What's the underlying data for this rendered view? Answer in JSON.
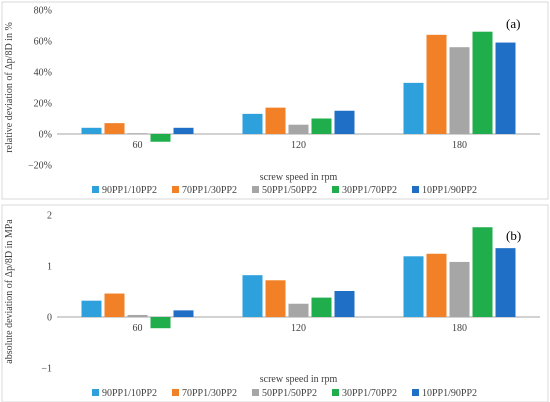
{
  "chart_data": [
    {
      "type": "bar",
      "panel_label": "(a)",
      "categories": [
        "60",
        "120",
        "180"
      ],
      "xlabel": "screw speed in rpm",
      "ylabel": "relative deviation of Δp/8D in %",
      "ylim": [
        -20,
        80
      ],
      "yticks": [
        -20,
        0,
        20,
        40,
        60,
        80
      ],
      "ytick_labels": [
        "−20%",
        "0%",
        "20%",
        "40%",
        "60%",
        "80%"
      ],
      "grid": false,
      "legend_position": "bottom",
      "series": [
        {
          "name": "90PP1/10PP2",
          "color": "#2ea1dd",
          "values": [
            4,
            13,
            33
          ]
        },
        {
          "name": "70PP1/30PP2",
          "color": "#f28026",
          "values": [
            7,
            17,
            64
          ]
        },
        {
          "name": "50PP1/50PP2",
          "color": "#a6a6a6",
          "values": [
            0.5,
            6,
            56
          ]
        },
        {
          "name": "30PP1/70PP2",
          "color": "#1fae4b",
          "values": [
            -5,
            10,
            66
          ]
        },
        {
          "name": "10PP1/90PP2",
          "color": "#1f6fc6",
          "values": [
            4,
            15,
            59
          ]
        }
      ]
    },
    {
      "type": "bar",
      "panel_label": "(b)",
      "categories": [
        "60",
        "120",
        "180"
      ],
      "xlabel": "screw speed in rpm",
      "ylabel": "absolute deviation of Δp/8D in MPa",
      "ylim": [
        -1,
        2
      ],
      "yticks": [
        -1,
        0,
        1,
        2
      ],
      "ytick_labels": [
        "−1",
        "0",
        "1",
        "2"
      ],
      "grid": false,
      "legend_position": "bottom",
      "series": [
        {
          "name": "90PP1/10PP2",
          "color": "#2ea1dd",
          "values": [
            0.32,
            0.82,
            1.19
          ]
        },
        {
          "name": "70PP1/30PP2",
          "color": "#f28026",
          "values": [
            0.46,
            0.72,
            1.24
          ]
        },
        {
          "name": "50PP1/50PP2",
          "color": "#a6a6a6",
          "values": [
            0.04,
            0.26,
            1.08
          ]
        },
        {
          "name": "30PP1/70PP2",
          "color": "#1fae4b",
          "values": [
            -0.22,
            0.38,
            1.76
          ]
        },
        {
          "name": "10PP1/90PP2",
          "color": "#1f6fc6",
          "values": [
            0.13,
            0.51,
            1.35
          ]
        }
      ]
    }
  ]
}
